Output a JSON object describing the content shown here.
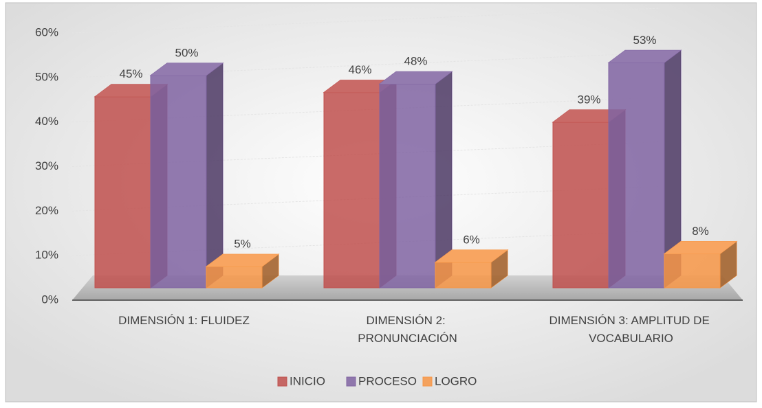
{
  "chart_data": {
    "type": "bar3d",
    "categories": [
      "DIMENSIÓN 1: FLUIDEZ",
      "DIMENSIÓN 2: PRONUNCIACIÓN",
      "DIMENSIÓN 3: AMPLITUD DE VOCABULARIO"
    ],
    "series": [
      {
        "name": "INICIO",
        "color": "#c0504d",
        "values": [
          45,
          46,
          39
        ],
        "value_labels": [
          "45%",
          "46%",
          "39%"
        ]
      },
      {
        "name": "PROCESO",
        "color": "#8064a2",
        "values": [
          50,
          48,
          53
        ],
        "value_labels": [
          "50%",
          "48%",
          "53%"
        ]
      },
      {
        "name": "LOGRO",
        "color": "#f79646",
        "values": [
          5,
          6,
          8
        ],
        "value_labels": [
          "5%",
          "6%",
          "8%"
        ]
      }
    ],
    "ylim": [
      0,
      60
    ],
    "yticks": [
      {
        "value": 0,
        "label": "0%"
      },
      {
        "value": 10,
        "label": "10%"
      },
      {
        "value": 20,
        "label": "20%"
      },
      {
        "value": 30,
        "label": "30%"
      },
      {
        "value": 40,
        "label": "40%"
      },
      {
        "value": 50,
        "label": "50%"
      },
      {
        "value": 60,
        "label": "60%"
      }
    ],
    "grid": true,
    "legend": "bottom"
  }
}
